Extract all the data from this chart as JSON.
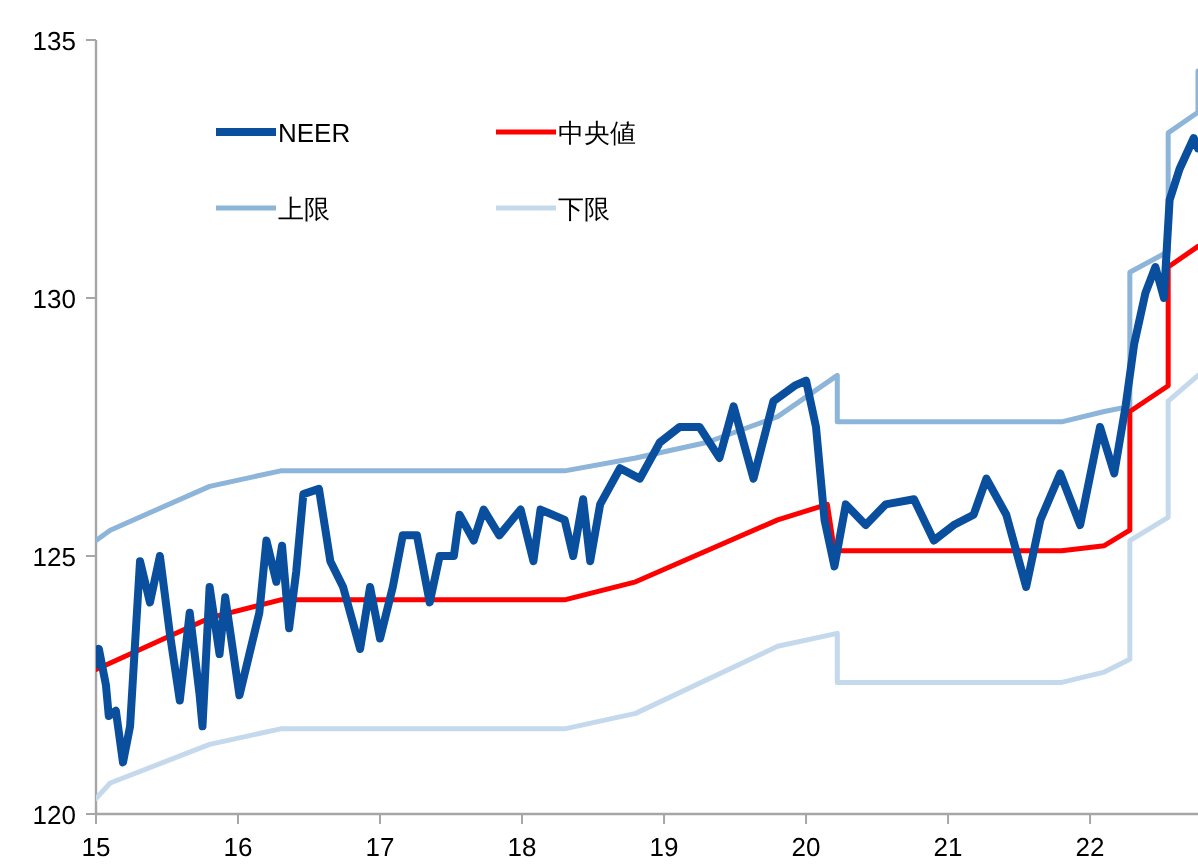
{
  "chart_data": {
    "type": "line",
    "xlim": [
      15,
      22.76
    ],
    "xticks": [
      15,
      16,
      17,
      18,
      19,
      20,
      21,
      22
    ],
    "ylim": [
      120,
      135
    ],
    "yticks": [
      120,
      125,
      130,
      135
    ],
    "grid": false,
    "legend": "top",
    "marker": "none",
    "line_style": "solid",
    "series": [
      {
        "name": "NEER",
        "color": "#0a4f9e",
        "x": [
          15.0,
          15.02,
          15.07,
          15.09,
          15.14,
          15.19,
          15.24,
          15.31,
          15.38,
          15.45,
          15.52,
          15.59,
          15.66,
          15.73,
          15.75,
          15.8,
          15.87,
          15.91,
          16.01,
          16.08,
          16.15,
          16.2,
          16.27,
          16.31,
          16.36,
          16.41,
          16.46,
          16.57,
          16.65,
          16.74,
          16.86,
          16.93,
          17.0,
          17.09,
          17.16,
          17.26,
          17.35,
          17.42,
          17.52,
          17.56,
          17.66,
          17.73,
          17.84,
          17.99,
          18.08,
          18.13,
          18.3,
          18.36,
          18.43,
          18.48,
          18.55,
          18.69,
          18.83,
          18.97,
          19.11,
          19.25,
          19.39,
          19.49,
          19.63,
          19.77,
          19.92,
          20.0,
          20.07,
          20.13,
          20.2,
          20.28,
          20.42,
          20.56,
          20.76,
          20.9,
          21.04,
          21.18,
          21.27,
          21.41,
          21.55,
          21.65,
          21.79,
          21.93,
          22.07,
          22.17,
          22.25,
          22.31,
          22.39,
          22.46,
          22.52,
          22.56,
          22.63,
          22.73,
          22.76
        ],
        "values": [
          122.9,
          123.2,
          122.5,
          121.9,
          122.0,
          121.0,
          121.7,
          124.9,
          124.1,
          125.0,
          123.5,
          122.2,
          123.9,
          122.3,
          121.7,
          124.4,
          123.1,
          124.2,
          122.3,
          123.1,
          123.9,
          125.3,
          124.5,
          125.2,
          123.6,
          124.7,
          126.2,
          126.3,
          124.9,
          124.4,
          123.2,
          124.4,
          123.4,
          124.4,
          125.4,
          125.4,
          124.1,
          125.0,
          125.0,
          125.8,
          125.3,
          125.9,
          125.4,
          125.9,
          124.9,
          125.9,
          125.7,
          125.0,
          126.1,
          124.9,
          126.0,
          126.7,
          126.5,
          127.2,
          127.5,
          127.5,
          126.9,
          127.9,
          126.5,
          128.0,
          128.3,
          128.4,
          127.5,
          125.7,
          124.8,
          126.0,
          125.6,
          126.0,
          126.1,
          125.3,
          125.6,
          125.8,
          126.5,
          125.8,
          124.4,
          125.7,
          126.6,
          125.6,
          127.5,
          126.6,
          127.9,
          129.1,
          130.1,
          130.6,
          130.0,
          131.9,
          132.5,
          133.1,
          132.9
        ]
      },
      {
        "name": "中央値",
        "color": "#ff0000",
        "x": [
          15.0,
          15.8,
          16.3,
          18.3,
          18.8,
          19.8,
          20.15,
          20.2,
          21.8,
          22.1,
          22.28,
          22.28,
          22.55,
          22.55,
          22.76
        ],
        "values": [
          122.8,
          123.8,
          124.15,
          124.15,
          124.5,
          125.7,
          126.0,
          125.1,
          125.1,
          125.2,
          125.5,
          127.8,
          128.3,
          130.6,
          131.0
        ]
      },
      {
        "name": "上限",
        "color": "#8db4d9",
        "x": [
          15.0,
          15.1,
          15.8,
          16.3,
          18.3,
          18.8,
          19.3,
          19.8,
          20.22,
          20.22,
          21.8,
          22.1,
          22.28,
          22.28,
          22.55,
          22.55,
          22.76,
          22.76
        ],
        "values": [
          125.3,
          125.5,
          126.35,
          126.65,
          126.65,
          126.9,
          127.2,
          127.7,
          128.5,
          127.6,
          127.6,
          127.8,
          127.9,
          130.5,
          130.9,
          133.2,
          133.6,
          134.4
        ]
      },
      {
        "name": "下限",
        "color": "#c5d9ec",
        "x": [
          15.0,
          15.1,
          15.8,
          16.3,
          18.3,
          18.8,
          19.8,
          20.22,
          20.22,
          21.8,
          22.1,
          22.28,
          22.28,
          22.55,
          22.55,
          22.76
        ],
        "values": [
          120.3,
          120.6,
          121.35,
          121.65,
          121.65,
          121.95,
          123.25,
          123.5,
          122.55,
          122.55,
          122.75,
          123.0,
          125.3,
          125.75,
          128.0,
          128.5
        ]
      }
    ]
  }
}
